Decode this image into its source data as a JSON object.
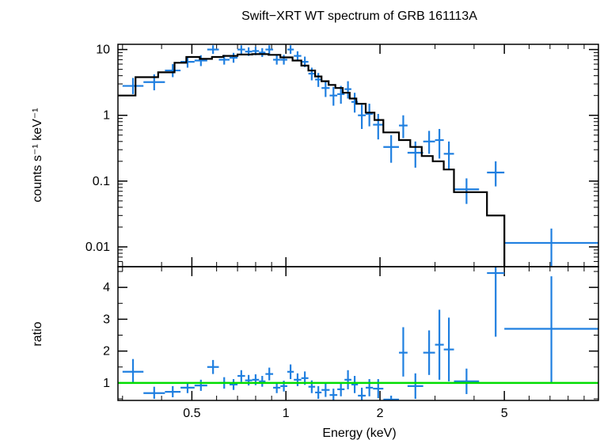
{
  "chart_data": {
    "title": "Swift−XRT WT spectrum of GRB 161113A",
    "xlabel": "Energy (keV)",
    "xscale": "log",
    "xlim": [
      0.29,
      10.0
    ],
    "x_ticks": [
      "0.5",
      "1",
      "2",
      "5"
    ],
    "colors": {
      "data": "#1f7fe0",
      "model": "#000000",
      "unity": "#00dd00",
      "frame": "#000000"
    },
    "panels": [
      {
        "id": "spectrum",
        "type": "errorbar",
        "ylabel": "counts s⁻¹ keV⁻¹",
        "yscale": "log",
        "ylim": [
          0.005,
          12
        ],
        "y_ticks": [
          "0.01",
          "0.1",
          "1",
          "10"
        ],
        "data": [
          {
            "elo": 0.3,
            "ehi": 0.35,
            "y": 2.8,
            "ylo": 2.1,
            "yhi": 3.7
          },
          {
            "elo": 0.35,
            "ehi": 0.41,
            "y": 3.2,
            "ylo": 2.4,
            "yhi": 4.2
          },
          {
            "elo": 0.41,
            "ehi": 0.46,
            "y": 4.8,
            "ylo": 3.8,
            "yhi": 6.0
          },
          {
            "elo": 0.46,
            "ehi": 0.51,
            "y": 6.5,
            "ylo": 5.3,
            "yhi": 7.9
          },
          {
            "elo": 0.51,
            "ehi": 0.56,
            "y": 6.8,
            "ylo": 5.6,
            "yhi": 8.2
          },
          {
            "elo": 0.56,
            "ehi": 0.61,
            "y": 10.0,
            "ylo": 8.6,
            "yhi": 11.6
          },
          {
            "elo": 0.61,
            "ehi": 0.66,
            "y": 7.0,
            "ylo": 5.9,
            "yhi": 8.3
          },
          {
            "elo": 0.66,
            "ehi": 0.7,
            "y": 7.5,
            "ylo": 6.3,
            "yhi": 8.9
          },
          {
            "elo": 0.7,
            "ehi": 0.74,
            "y": 10.0,
            "ylo": 8.6,
            "yhi": 11.6
          },
          {
            "elo": 0.74,
            "ehi": 0.78,
            "y": 9.3,
            "ylo": 8.0,
            "yhi": 10.8
          },
          {
            "elo": 0.78,
            "ehi": 0.82,
            "y": 9.5,
            "ylo": 8.2,
            "yhi": 11.0
          },
          {
            "elo": 0.82,
            "ehi": 0.86,
            "y": 9.0,
            "ylo": 7.7,
            "yhi": 10.5
          },
          {
            "elo": 0.86,
            "ehi": 0.91,
            "y": 10.0,
            "ylo": 8.6,
            "yhi": 11.6
          },
          {
            "elo": 0.91,
            "ehi": 0.96,
            "y": 7.0,
            "ylo": 5.9,
            "yhi": 8.3
          },
          {
            "elo": 0.96,
            "ehi": 1.01,
            "y": 7.0,
            "ylo": 5.9,
            "yhi": 8.3
          },
          {
            "elo": 1.01,
            "ehi": 1.06,
            "y": 10.0,
            "ylo": 8.6,
            "yhi": 11.6
          },
          {
            "elo": 1.06,
            "ehi": 1.12,
            "y": 8.0,
            "ylo": 6.8,
            "yhi": 9.4
          },
          {
            "elo": 1.12,
            "ehi": 1.18,
            "y": 6.5,
            "ylo": 5.4,
            "yhi": 7.8
          },
          {
            "elo": 1.18,
            "ehi": 1.24,
            "y": 4.3,
            "ylo": 3.4,
            "yhi": 5.3
          },
          {
            "elo": 1.24,
            "ehi": 1.3,
            "y": 3.5,
            "ylo": 2.7,
            "yhi": 4.4
          },
          {
            "elo": 1.3,
            "ehi": 1.38,
            "y": 2.6,
            "ylo": 1.9,
            "yhi": 3.4
          },
          {
            "elo": 1.38,
            "ehi": 1.46,
            "y": 2.0,
            "ylo": 1.4,
            "yhi": 2.7
          },
          {
            "elo": 1.46,
            "ehi": 1.54,
            "y": 2.1,
            "ylo": 1.5,
            "yhi": 2.8
          },
          {
            "elo": 1.54,
            "ehi": 1.62,
            "y": 2.5,
            "ylo": 1.8,
            "yhi": 3.3
          },
          {
            "elo": 1.62,
            "ehi": 1.7,
            "y": 1.6,
            "ylo": 1.1,
            "yhi": 2.2
          },
          {
            "elo": 1.7,
            "ehi": 1.8,
            "y": 1.0,
            "ylo": 0.62,
            "yhi": 1.45
          },
          {
            "elo": 1.8,
            "ehi": 1.9,
            "y": 1.05,
            "ylo": 0.68,
            "yhi": 1.5
          },
          {
            "elo": 1.9,
            "ehi": 2.05,
            "y": 0.72,
            "ylo": 0.43,
            "yhi": 1.05
          },
          {
            "elo": 2.05,
            "ehi": 2.3,
            "y": 0.33,
            "ylo": 0.19,
            "yhi": 0.5
          },
          {
            "elo": 2.3,
            "ehi": 2.45,
            "y": 0.7,
            "ylo": 0.45,
            "yhi": 1.0
          },
          {
            "elo": 2.45,
            "ehi": 2.75,
            "y": 0.27,
            "ylo": 0.16,
            "yhi": 0.4
          },
          {
            "elo": 2.75,
            "ehi": 3.0,
            "y": 0.4,
            "ylo": 0.26,
            "yhi": 0.58
          },
          {
            "elo": 3.0,
            "ehi": 3.2,
            "y": 0.42,
            "ylo": 0.22,
            "yhi": 0.62
          },
          {
            "elo": 3.2,
            "ehi": 3.45,
            "y": 0.26,
            "ylo": 0.15,
            "yhi": 0.4
          },
          {
            "elo": 3.45,
            "ehi": 4.15,
            "y": 0.075,
            "ylo": 0.045,
            "yhi": 0.11
          },
          {
            "elo": 4.4,
            "ehi": 5.0,
            "y": 0.135,
            "ylo": 0.083,
            "yhi": 0.2
          },
          {
            "elo": 5.0,
            "ehi": 10.0,
            "y": 0.0115,
            "ylo": 0.005,
            "yhi": 0.019
          }
        ],
        "model_step": [
          {
            "x": 0.29,
            "y": 2.0
          },
          {
            "x": 0.33,
            "y": 2.0
          },
          {
            "x": 0.33,
            "y": 3.8
          },
          {
            "x": 0.39,
            "y": 3.8
          },
          {
            "x": 0.39,
            "y": 4.5
          },
          {
            "x": 0.44,
            "y": 4.5
          },
          {
            "x": 0.44,
            "y": 6.3
          },
          {
            "x": 0.48,
            "y": 6.3
          },
          {
            "x": 0.48,
            "y": 7.7
          },
          {
            "x": 0.53,
            "y": 7.7
          },
          {
            "x": 0.53,
            "y": 7.2
          },
          {
            "x": 0.58,
            "y": 7.2
          },
          {
            "x": 0.58,
            "y": 7.7
          },
          {
            "x": 0.63,
            "y": 7.7
          },
          {
            "x": 0.63,
            "y": 8.0
          },
          {
            "x": 0.7,
            "y": 8.0
          },
          {
            "x": 0.7,
            "y": 8.4
          },
          {
            "x": 0.78,
            "y": 8.4
          },
          {
            "x": 0.78,
            "y": 8.5
          },
          {
            "x": 0.88,
            "y": 8.5
          },
          {
            "x": 0.88,
            "y": 8.3
          },
          {
            "x": 0.96,
            "y": 8.3
          },
          {
            "x": 0.96,
            "y": 7.6
          },
          {
            "x": 1.05,
            "y": 7.6
          },
          {
            "x": 1.05,
            "y": 6.8
          },
          {
            "x": 1.12,
            "y": 6.8
          },
          {
            "x": 1.12,
            "y": 5.7
          },
          {
            "x": 1.18,
            "y": 5.7
          },
          {
            "x": 1.18,
            "y": 4.8
          },
          {
            "x": 1.24,
            "y": 4.8
          },
          {
            "x": 1.24,
            "y": 3.9
          },
          {
            "x": 1.3,
            "y": 3.9
          },
          {
            "x": 1.3,
            "y": 3.3
          },
          {
            "x": 1.37,
            "y": 3.3
          },
          {
            "x": 1.37,
            "y": 2.9
          },
          {
            "x": 1.44,
            "y": 2.9
          },
          {
            "x": 1.44,
            "y": 2.6
          },
          {
            "x": 1.52,
            "y": 2.6
          },
          {
            "x": 1.52,
            "y": 2.2
          },
          {
            "x": 1.6,
            "y": 2.2
          },
          {
            "x": 1.6,
            "y": 1.8
          },
          {
            "x": 1.68,
            "y": 1.8
          },
          {
            "x": 1.68,
            "y": 1.5
          },
          {
            "x": 1.8,
            "y": 1.5
          },
          {
            "x": 1.8,
            "y": 1.1
          },
          {
            "x": 1.92,
            "y": 1.1
          },
          {
            "x": 1.92,
            "y": 0.85
          },
          {
            "x": 2.05,
            "y": 0.85
          },
          {
            "x": 2.05,
            "y": 0.55
          },
          {
            "x": 2.3,
            "y": 0.55
          },
          {
            "x": 2.3,
            "y": 0.42
          },
          {
            "x": 2.5,
            "y": 0.42
          },
          {
            "x": 2.5,
            "y": 0.33
          },
          {
            "x": 2.72,
            "y": 0.33
          },
          {
            "x": 2.72,
            "y": 0.24
          },
          {
            "x": 2.95,
            "y": 0.24
          },
          {
            "x": 2.95,
            "y": 0.2
          },
          {
            "x": 3.2,
            "y": 0.2
          },
          {
            "x": 3.2,
            "y": 0.15
          },
          {
            "x": 3.45,
            "y": 0.15
          },
          {
            "x": 3.45,
            "y": 0.068
          },
          {
            "x": 4.4,
            "y": 0.068
          },
          {
            "x": 4.4,
            "y": 0.03
          },
          {
            "x": 5.0,
            "y": 0.03
          },
          {
            "x": 5.0,
            "y": 0.005
          }
        ]
      },
      {
        "id": "ratio",
        "type": "errorbar",
        "ylabel": "ratio",
        "yscale": "linear",
        "ylim": [
          0.45,
          4.65
        ],
        "y_ticks": [
          "1",
          "2",
          "3",
          "4"
        ],
        "unity_line": 1,
        "data": [
          {
            "elo": 0.3,
            "ehi": 0.35,
            "y": 1.35,
            "ylo": 1.0,
            "yhi": 1.75
          },
          {
            "elo": 0.35,
            "ehi": 0.41,
            "y": 0.68,
            "ylo": 0.5,
            "yhi": 0.88
          },
          {
            "elo": 0.41,
            "ehi": 0.46,
            "y": 0.72,
            "ylo": 0.55,
            "yhi": 0.9
          },
          {
            "elo": 0.46,
            "ehi": 0.51,
            "y": 0.85,
            "ylo": 0.68,
            "yhi": 1.02
          },
          {
            "elo": 0.51,
            "ehi": 0.56,
            "y": 0.92,
            "ylo": 0.75,
            "yhi": 1.1
          },
          {
            "elo": 0.56,
            "ehi": 0.61,
            "y": 1.5,
            "ylo": 1.28,
            "yhi": 1.72
          },
          {
            "elo": 0.61,
            "ehi": 0.66,
            "y": 1.0,
            "ylo": 0.82,
            "yhi": 1.18
          },
          {
            "elo": 0.66,
            "ehi": 0.7,
            "y": 0.95,
            "ylo": 0.78,
            "yhi": 1.12
          },
          {
            "elo": 0.7,
            "ehi": 0.74,
            "y": 1.22,
            "ylo": 1.03,
            "yhi": 1.4
          },
          {
            "elo": 0.74,
            "ehi": 0.78,
            "y": 1.08,
            "ylo": 0.92,
            "yhi": 1.25
          },
          {
            "elo": 0.78,
            "ehi": 0.82,
            "y": 1.1,
            "ylo": 0.93,
            "yhi": 1.27
          },
          {
            "elo": 0.82,
            "ehi": 0.86,
            "y": 1.05,
            "ylo": 0.88,
            "yhi": 1.22
          },
          {
            "elo": 0.86,
            "ehi": 0.91,
            "y": 1.28,
            "ylo": 1.08,
            "yhi": 1.48
          },
          {
            "elo": 0.91,
            "ehi": 0.96,
            "y": 0.85,
            "ylo": 0.68,
            "yhi": 1.02
          },
          {
            "elo": 0.96,
            "ehi": 1.01,
            "y": 0.9,
            "ylo": 0.73,
            "yhi": 1.07
          },
          {
            "elo": 1.01,
            "ehi": 1.06,
            "y": 1.35,
            "ylo": 1.12,
            "yhi": 1.58
          },
          {
            "elo": 1.06,
            "ehi": 1.12,
            "y": 1.1,
            "ylo": 0.9,
            "yhi": 1.3
          },
          {
            "elo": 1.12,
            "ehi": 1.18,
            "y": 1.15,
            "ylo": 0.94,
            "yhi": 1.36
          },
          {
            "elo": 1.18,
            "ehi": 1.24,
            "y": 0.88,
            "ylo": 0.68,
            "yhi": 1.08
          },
          {
            "elo": 1.24,
            "ehi": 1.3,
            "y": 0.7,
            "ylo": 0.5,
            "yhi": 0.9
          },
          {
            "elo": 1.3,
            "ehi": 1.38,
            "y": 0.78,
            "ylo": 0.56,
            "yhi": 1.0
          },
          {
            "elo": 1.38,
            "ehi": 1.46,
            "y": 0.62,
            "ylo": 0.45,
            "yhi": 0.82
          },
          {
            "elo": 1.46,
            "ehi": 1.54,
            "y": 0.8,
            "ylo": 0.58,
            "yhi": 1.02
          },
          {
            "elo": 1.54,
            "ehi": 1.62,
            "y": 1.1,
            "ylo": 0.8,
            "yhi": 1.4
          },
          {
            "elo": 1.62,
            "ehi": 1.7,
            "y": 0.95,
            "ylo": 0.68,
            "yhi": 1.22
          },
          {
            "elo": 1.7,
            "ehi": 1.8,
            "y": 0.6,
            "ylo": 0.45,
            "yhi": 0.85
          },
          {
            "elo": 1.8,
            "ehi": 1.9,
            "y": 0.85,
            "ylo": 0.58,
            "yhi": 1.12
          },
          {
            "elo": 1.9,
            "ehi": 2.05,
            "y": 0.82,
            "ylo": 0.52,
            "yhi": 1.12
          },
          {
            "elo": 2.05,
            "ehi": 2.3,
            "y": 0.48,
            "ylo": 0.45,
            "yhi": 0.6
          },
          {
            "elo": 2.3,
            "ehi": 2.45,
            "y": 1.95,
            "ylo": 1.2,
            "yhi": 2.75
          },
          {
            "elo": 2.45,
            "ehi": 2.75,
            "y": 0.9,
            "ylo": 0.5,
            "yhi": 1.3
          },
          {
            "elo": 2.75,
            "ehi": 3.0,
            "y": 1.95,
            "ylo": 1.25,
            "yhi": 2.65
          },
          {
            "elo": 3.0,
            "ehi": 3.2,
            "y": 2.2,
            "ylo": 1.1,
            "yhi": 3.3
          },
          {
            "elo": 3.2,
            "ehi": 3.45,
            "y": 2.05,
            "ylo": 1.05,
            "yhi": 3.05
          },
          {
            "elo": 3.45,
            "ehi": 4.15,
            "y": 1.05,
            "ylo": 0.65,
            "yhi": 1.45
          },
          {
            "elo": 4.4,
            "ehi": 5.0,
            "y": 4.45,
            "ylo": 2.45,
            "yhi": 4.65
          },
          {
            "elo": 5.0,
            "ehi": 10.0,
            "y": 2.7,
            "ylo": 1.0,
            "yhi": 4.35
          }
        ]
      }
    ]
  }
}
